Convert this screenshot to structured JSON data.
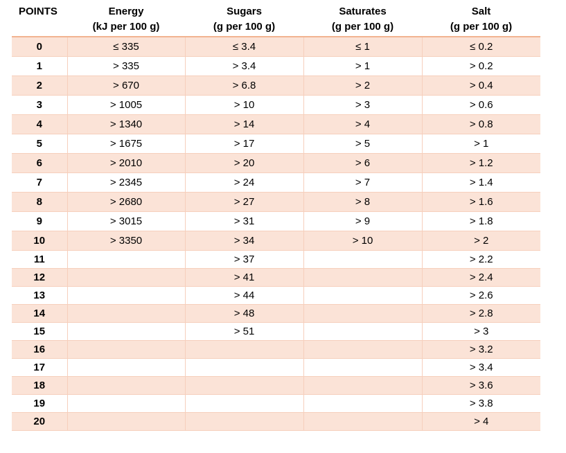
{
  "headers": [
    {
      "line1": "POINTS",
      "line2": ""
    },
    {
      "line1": "Energy",
      "line2": "(kJ per 100 g)"
    },
    {
      "line1": "Sugars",
      "line2": "(g per 100 g)"
    },
    {
      "line1": "Saturates",
      "line2": "(g per 100 g)"
    },
    {
      "line1": "Salt",
      "line2": "(g per 100 g)"
    }
  ],
  "rows": [
    [
      "0",
      "≤ 335",
      "≤ 3.4",
      "≤ 1",
      "≤ 0.2"
    ],
    [
      "1",
      "> 335",
      "> 3.4",
      "> 1",
      "> 0.2"
    ],
    [
      "2",
      "> 670",
      "> 6.8",
      "> 2",
      "> 0.4"
    ],
    [
      "3",
      "> 1005",
      "> 10",
      "> 3",
      "> 0.6"
    ],
    [
      "4",
      "> 1340",
      "> 14",
      "> 4",
      "> 0.8"
    ],
    [
      "5",
      "> 1675",
      "> 17",
      "> 5",
      "> 1"
    ],
    [
      "6",
      "> 2010",
      "> 20",
      "> 6",
      "> 1.2"
    ],
    [
      "7",
      "> 2345",
      "> 24",
      "> 7",
      "> 1.4"
    ],
    [
      "8",
      "> 2680",
      "> 27",
      "> 8",
      "> 1.6"
    ],
    [
      "9",
      "> 3015",
      "> 31",
      "> 9",
      "> 1.8"
    ],
    [
      "10",
      "> 3350",
      "> 34",
      "> 10",
      "> 2"
    ],
    [
      "11",
      "",
      "> 37",
      "",
      "> 2.2"
    ],
    [
      "12",
      "",
      "> 41",
      "",
      "> 2.4"
    ],
    [
      "13",
      "",
      "> 44",
      "",
      "> 2.6"
    ],
    [
      "14",
      "",
      "> 48",
      "",
      "> 2.8"
    ],
    [
      "15",
      "",
      "> 51",
      "",
      "> 3"
    ],
    [
      "16",
      "",
      "",
      "",
      "> 3.2"
    ],
    [
      "17",
      "",
      "",
      "",
      "> 3.4"
    ],
    [
      "18",
      "",
      "",
      "",
      "> 3.6"
    ],
    [
      "19",
      "",
      "",
      "",
      "> 3.8"
    ],
    [
      "20",
      "",
      "",
      "",
      "> 4"
    ]
  ],
  "colors": {
    "row_shade": "#fbe3d7",
    "rule": "#f2b391",
    "grid": "#f6cfbc"
  }
}
